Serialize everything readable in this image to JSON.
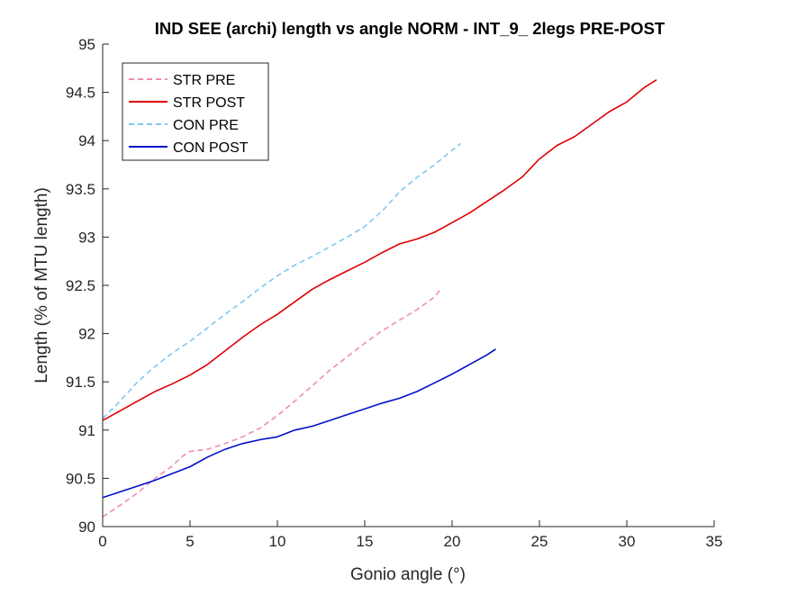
{
  "chart_data": {
    "type": "line",
    "title": "IND SEE (archi) length vs angle NORM - INT_9_ 2legs PRE-POST",
    "xlabel": "Gonio angle (°)",
    "ylabel": "Length (% of MTU length)",
    "xlim": [
      0,
      35
    ],
    "ylim": [
      90,
      95
    ],
    "xticks": [
      0,
      5,
      10,
      15,
      20,
      25,
      30,
      35
    ],
    "xtick_labels": [
      "0",
      "5",
      "10",
      "15",
      "20",
      "25",
      "30",
      "35"
    ],
    "yticks": [
      90,
      90.5,
      91,
      91.5,
      92,
      92.5,
      93,
      93.5,
      94,
      94.5,
      95
    ],
    "ytick_labels": [
      "90",
      "90.5",
      "91",
      "91.5",
      "92",
      "92.5",
      "93",
      "93.5",
      "94",
      "94.5",
      "95"
    ],
    "grid": false,
    "legend_position": "top-left",
    "series": [
      {
        "name": "STR PRE",
        "color": "#f08cb4",
        "dash": "dashed",
        "x": [
          0,
          1,
          2,
          3,
          4,
          4.5,
          5,
          6,
          7,
          8,
          9,
          10,
          11,
          12,
          13,
          14,
          15,
          16,
          17,
          18,
          19,
          19.3
        ],
        "y": [
          90.1,
          90.22,
          90.35,
          90.5,
          90.63,
          90.72,
          90.78,
          90.8,
          90.86,
          90.93,
          91.02,
          91.15,
          91.3,
          91.46,
          91.62,
          91.76,
          91.9,
          92.03,
          92.14,
          92.25,
          92.38,
          92.45
        ]
      },
      {
        "name": "STR POST",
        "color": "#e00000",
        "dash": "solid",
        "x": [
          0,
          1,
          2,
          3,
          4,
          5,
          6,
          7,
          8,
          9,
          10,
          11,
          12,
          13,
          14,
          15,
          16,
          17,
          18,
          19,
          20,
          21,
          22,
          23,
          24,
          25,
          26,
          27,
          28,
          29,
          30,
          31,
          31.7
        ],
        "y": [
          91.1,
          91.2,
          91.3,
          91.4,
          91.48,
          91.57,
          91.68,
          91.82,
          91.96,
          92.09,
          92.2,
          92.33,
          92.46,
          92.56,
          92.65,
          92.74,
          92.84,
          92.93,
          92.98,
          93.05,
          93.15,
          93.25,
          93.37,
          93.49,
          93.62,
          93.81,
          93.95,
          94.04,
          94.17,
          94.3,
          94.4,
          94.55,
          94.63
        ]
      },
      {
        "name": "CON PRE",
        "color": "#80c8f0",
        "dash": "dashed",
        "x": [
          0,
          1,
          2,
          3,
          4,
          5,
          6,
          7,
          8,
          9,
          10,
          11,
          12,
          13,
          14,
          15,
          16,
          17,
          18,
          19,
          20,
          20.5
        ],
        "y": [
          91.12,
          91.3,
          91.5,
          91.66,
          91.8,
          91.92,
          92.06,
          92.2,
          92.33,
          92.47,
          92.6,
          92.71,
          92.8,
          92.9,
          93.0,
          93.11,
          93.27,
          93.47,
          93.62,
          93.75,
          93.9,
          93.97
        ]
      },
      {
        "name": "CON POST",
        "color": "#0010c8",
        "dash": "solid",
        "x": [
          0,
          1,
          2,
          3,
          4,
          5,
          6,
          7,
          8,
          9,
          10,
          11,
          12,
          13,
          14,
          15,
          16,
          17,
          18,
          19,
          20,
          21,
          22,
          22.5
        ],
        "y": [
          90.3,
          90.36,
          90.42,
          90.48,
          90.55,
          90.62,
          90.72,
          90.8,
          90.86,
          90.9,
          90.93,
          91.0,
          91.04,
          91.1,
          91.16,
          91.22,
          91.28,
          91.33,
          91.4,
          91.49,
          91.58,
          91.68,
          91.78,
          91.84
        ]
      }
    ]
  }
}
